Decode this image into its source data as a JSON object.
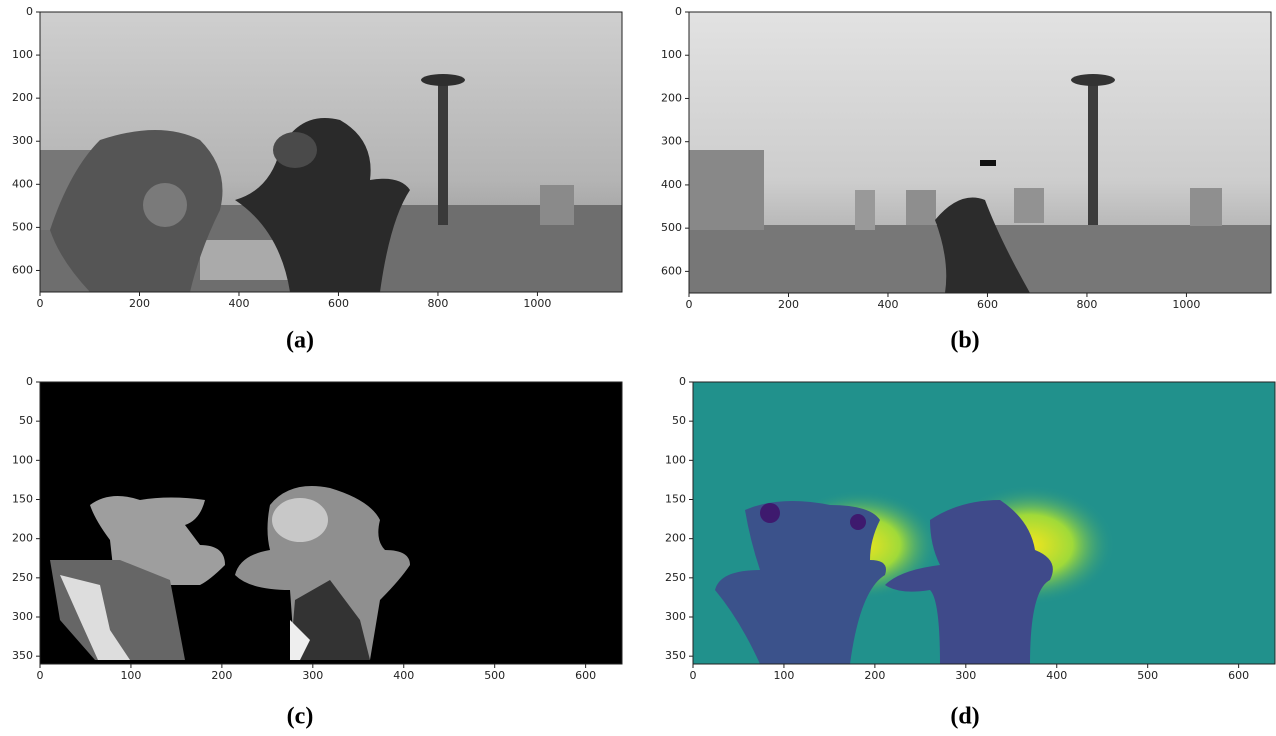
{
  "chart_data": [
    {
      "type": "image",
      "caption": "(a)",
      "xlim": [
        0,
        1170
      ],
      "ylim": [
        650,
        0
      ],
      "xticks": [
        0,
        200,
        400,
        600,
        800,
        1000
      ],
      "yticks": [
        0,
        100,
        200,
        300,
        400,
        500,
        600
      ]
    },
    {
      "type": "image",
      "caption": "(b)",
      "xlim": [
        0,
        1170
      ],
      "ylim": [
        650,
        0
      ],
      "xticks": [
        0,
        200,
        400,
        600,
        800,
        1000
      ],
      "yticks": [
        0,
        100,
        200,
        300,
        400,
        500,
        600
      ]
    },
    {
      "type": "image",
      "caption": "(c)",
      "xlim": [
        0,
        640
      ],
      "ylim": [
        360,
        0
      ],
      "xticks": [
        0,
        100,
        200,
        300,
        400,
        500,
        600
      ],
      "yticks": [
        0,
        50,
        100,
        150,
        200,
        250,
        300,
        350
      ]
    },
    {
      "type": "image",
      "caption": "(d)",
      "xlim": [
        0,
        640
      ],
      "ylim": [
        360,
        0
      ],
      "xticks": [
        0,
        100,
        200,
        300,
        400,
        500,
        600
      ],
      "yticks": [
        0,
        50,
        100,
        150,
        200,
        250,
        300,
        350
      ]
    }
  ]
}
